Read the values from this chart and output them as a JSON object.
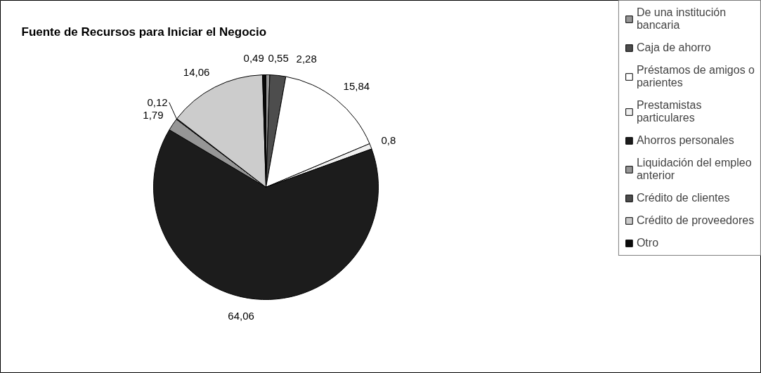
{
  "chart_data": {
    "type": "pie",
    "title": "Fuente de Recursos para Iniciar el Negocio",
    "categories": [
      "De una institución bancaria",
      "Caja de ahorro",
      "Préstamos de amigos o parientes",
      "Prestamistas particulares",
      "Ahorros personales",
      "Liquidación del empleo anterior",
      "Crédito de clientes",
      "Crédito de proveedores",
      "Otro"
    ],
    "values": [
      0.55,
      2.28,
      15.84,
      0.8,
      64.06,
      1.79,
      0.12,
      14.06,
      0.49
    ],
    "value_labels": [
      "0,55",
      "2,28",
      "15,84",
      "0,8",
      "64,06",
      "1,79",
      "0,12",
      "14,06",
      "0,49"
    ],
    "colors": [
      "#969696",
      "#4d4d4d",
      "#ffffff",
      "#f0f0f0",
      "#1c1c1c",
      "#969696",
      "#4d4d4d",
      "#cccccc",
      "#0a0a0a"
    ],
    "legend": "right"
  }
}
